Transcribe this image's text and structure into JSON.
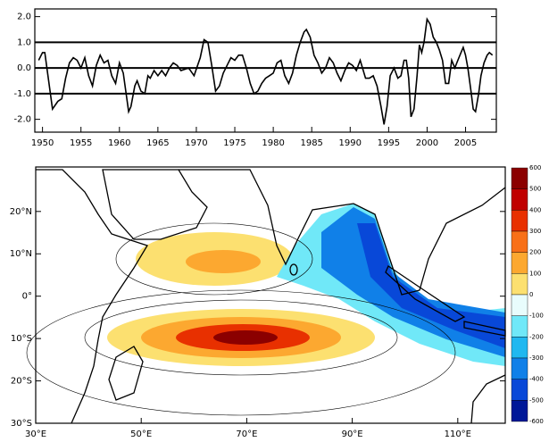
{
  "chart_data": [
    {
      "type": "line",
      "color": "#000000",
      "x": [
        1949.5,
        1950,
        1950.3,
        1950.8,
        1951.3,
        1952,
        1952.5,
        1953,
        1953.5,
        1954,
        1954.5,
        1955,
        1955.5,
        1956,
        1956.5,
        1957,
        1957.5,
        1958,
        1958.5,
        1959,
        1959.5,
        1960,
        1960.5,
        1961.2,
        1961.5,
        1962,
        1962.3,
        1962.8,
        1963.3,
        1963.7,
        1964,
        1964.5,
        1965,
        1965.5,
        1966,
        1966.5,
        1967,
        1967.5,
        1968,
        1969,
        1969.7,
        1970.5,
        1971,
        1971.5,
        1972,
        1972.5,
        1973,
        1973.5,
        1974,
        1974.5,
        1975,
        1975.5,
        1976,
        1976.5,
        1977,
        1977.5,
        1978,
        1978.5,
        1979,
        1979.5,
        1980,
        1980.5,
        1981,
        1981.5,
        1982,
        1982.5,
        1983,
        1983.5,
        1984,
        1984.3,
        1984.8,
        1985.3,
        1985.8,
        1986.3,
        1986.8,
        1987.3,
        1987.8,
        1988.3,
        1988.8,
        1989.3,
        1989.8,
        1990.3,
        1990.8,
        1991.3,
        1992,
        1992.5,
        1993,
        1993.5,
        1994,
        1994.4,
        1994.8,
        1995.2,
        1995.7,
        1996.2,
        1996.6,
        1997,
        1997.3,
        1997.6,
        1997.9,
        1998.3,
        1998.7,
        1999,
        1999.3,
        1999.6,
        2000,
        2000.4,
        2000.8,
        2001.2,
        2001.6,
        2002,
        2002.4,
        2002.8,
        2003.2,
        2003.6,
        2004,
        2004.4,
        2004.7,
        2005,
        2005.3,
        2005.7,
        2006,
        2006.3,
        2006.7,
        2007,
        2007.4,
        2007.8,
        2008.1,
        2008.5
      ],
      "values": [
        0.3,
        0.6,
        0.6,
        -0.5,
        -1.6,
        -1.3,
        -1.2,
        -0.4,
        0.2,
        0.4,
        0.3,
        0,
        0.4,
        -0.3,
        -0.7,
        0.1,
        0.5,
        0.2,
        0.3,
        -0.3,
        -0.6,
        0.2,
        -0.2,
        -1.7,
        -1.5,
        -0.7,
        -0.5,
        -0.9,
        -1.0,
        -0.3,
        -0.4,
        -0.1,
        -0.3,
        -0.1,
        -0.3,
        0,
        0.2,
        0.1,
        -0.1,
        0,
        -0.3,
        0.4,
        1.1,
        1.0,
        0.1,
        -0.9,
        -0.7,
        -0.2,
        0.1,
        0.4,
        0.3,
        0.5,
        0.5,
        0,
        -0.6,
        -1.0,
        -0.9,
        -0.6,
        -0.4,
        -0.3,
        -0.2,
        0.2,
        0.3,
        -0.3,
        -0.6,
        -0.2,
        0.5,
        1.0,
        1.4,
        1.5,
        1.2,
        0.5,
        0.2,
        -0.2,
        0,
        0.4,
        0.2,
        -0.2,
        -0.5,
        -0.1,
        0.2,
        0.1,
        -0.1,
        0.3,
        -0.4,
        -0.4,
        -0.3,
        -0.7,
        -1.5,
        -2.2,
        -1.5,
        -0.3,
        0,
        -0.4,
        -0.3,
        0.3,
        0.3,
        -0.4,
        -1.9,
        -1.6,
        -0.3,
        0.9,
        0.6,
        1.0,
        1.9,
        1.7,
        1.2,
        1.0,
        0.7,
        0.3,
        -0.6,
        -0.6,
        0.3,
        0,
        0.3,
        0.6,
        0.8,
        0.5,
        0,
        -0.9,
        -1.6,
        -1.7,
        -1.0,
        -0.3,
        0.2,
        0.5,
        0.6,
        0.5
      ],
      "xlim": [
        1949,
        2009
      ],
      "xticks": [
        1950,
        1955,
        1960,
        1965,
        1970,
        1975,
        1980,
        1985,
        1990,
        1995,
        2000,
        2005
      ],
      "ylim": [
        -2.5,
        2.3
      ],
      "yticks": [
        {
          "value": -2,
          "label": "-2.0"
        },
        {
          "value": -1,
          "label": "-1.0"
        },
        {
          "value": 0,
          "label": "0.0"
        },
        {
          "value": 1,
          "label": "1.0"
        },
        {
          "value": 2,
          "label": "2.0"
        }
      ],
      "hlines": [
        -1,
        0,
        1
      ]
    },
    {
      "type": "contour",
      "xlim": [
        30,
        119
      ],
      "ylim": [
        -30,
        30.5
      ],
      "xticks": [
        {
          "value": 30,
          "label": "30°E"
        },
        {
          "value": 50,
          "label": "50°E"
        },
        {
          "value": 70,
          "label": "70°E"
        },
        {
          "value": 90,
          "label": "90°E"
        },
        {
          "value": 110,
          "label": "110°E"
        }
      ],
      "yticks": [
        {
          "value": 20,
          "label": "20°N"
        },
        {
          "value": 10,
          "label": "10°N"
        },
        {
          "value": 0,
          "label": "0°"
        },
        {
          "value": -10,
          "label": "10°S"
        },
        {
          "value": -20,
          "label": "20°S"
        },
        {
          "value": -30,
          "label": "30°S"
        }
      ],
      "colorbar": {
        "ticks": [
          600,
          500,
          400,
          300,
          200,
          100,
          0,
          -100,
          -200,
          -300,
          -400,
          -500,
          -600
        ],
        "colors": [
          "#8b0000",
          "#c00000",
          "#e83000",
          "#f87018",
          "#fca830",
          "#fce070",
          "#e8fcfc",
          "#70e8f8",
          "#20b8f0",
          "#1080e8",
          "#0848d8",
          "#001898"
        ]
      }
    }
  ]
}
